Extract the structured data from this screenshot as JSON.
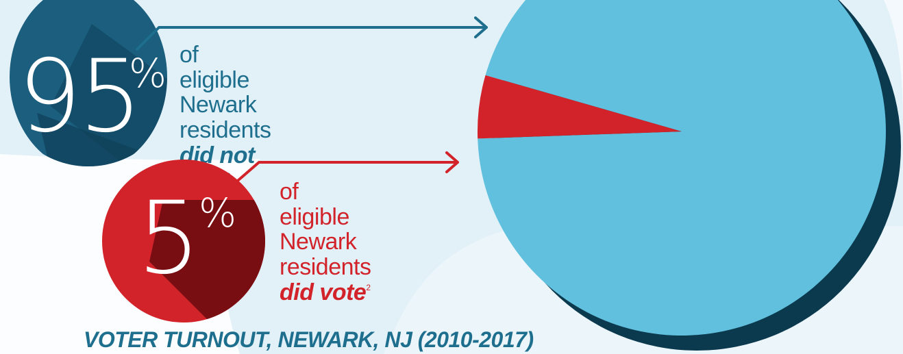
{
  "colors": {
    "background": "#e2f1f8",
    "swirl": "#ffffff",
    "did_not_vote": "#60c0dd",
    "did_vote": "#d3232a",
    "blue_dark": "#1b5e7e",
    "blue_text": "#1e6e8e",
    "red_text": "#d3232a",
    "pie_shadow": "#0b3a4e"
  },
  "stats": [
    {
      "number": "95",
      "percent_sign": "%",
      "line1": "of eligible",
      "line2": "Newark residents",
      "emphasis": "did not vote",
      "footnote": "2"
    },
    {
      "number": "5",
      "percent_sign": "%",
      "line1": "of eligible",
      "line2": "Newark residents",
      "emphasis": "did vote",
      "footnote": "2"
    }
  ],
  "chart_data": {
    "type": "pie",
    "title": "VOTER TURNOUT, NEWARK, NJ (2010-2017)",
    "categories": [
      "did not vote",
      "did vote"
    ],
    "values": [
      95,
      5
    ],
    "unit": "%",
    "colors": [
      "#60c0dd",
      "#d3232a"
    ]
  }
}
